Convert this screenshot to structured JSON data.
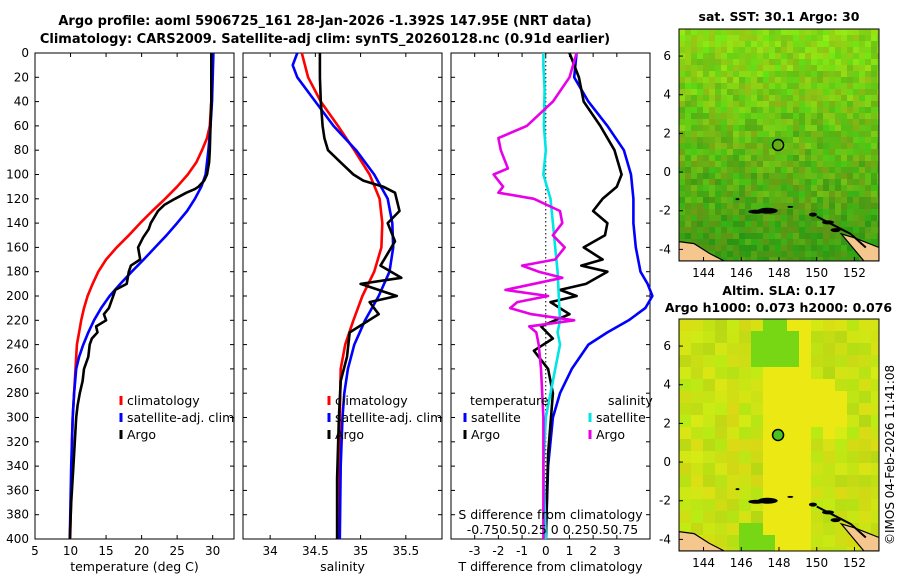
{
  "title": {
    "line1": "Argo profile: aoml 5906725_161 28-Jan-2026 -1.392S 147.95E (NRT data)",
    "line2": "Climatology: CARS2009. Satellite-adj clim: synTS_20260128.nc (0.91d earlier)"
  },
  "colors": {
    "climatology": "#ff0000",
    "satellite": "#0000ff",
    "argo": "#000000",
    "cyan": "#00e5e5",
    "magenta": "#e800e8",
    "land": "#f5c78e"
  },
  "chart_data": [
    {
      "type": "line",
      "name": "temperature",
      "xlabel": "temperature (deg C)",
      "ylim": [
        0,
        400
      ],
      "xlim": [
        5,
        33
      ],
      "xticks": [
        5,
        10,
        15,
        20,
        25,
        30
      ],
      "yticks": [
        0,
        20,
        40,
        60,
        80,
        100,
        120,
        140,
        160,
        180,
        200,
        220,
        240,
        260,
        280,
        300,
        320,
        340,
        360,
        380,
        400
      ],
      "legend": [
        "climatology",
        "satellite-adj. clim",
        "Argo"
      ],
      "series": [
        {
          "name": "climatology",
          "color": "#ff0000",
          "x": [
            30,
            29.9,
            29.8,
            29.6,
            29.2,
            28.5,
            27.7,
            26.5,
            25.0,
            23.3,
            21.5,
            19.8,
            18.2,
            16.5,
            15.0,
            13.9,
            13.1,
            12.4,
            11.9,
            11.5,
            11.2,
            10.9,
            10.7,
            10.5,
            10.3,
            10.2,
            10.1,
            9.95
          ],
          "y": [
            0,
            20,
            40,
            60,
            70,
            80,
            90,
            100,
            110,
            120,
            130,
            140,
            150,
            160,
            170,
            180,
            190,
            200,
            210,
            220,
            230,
            240,
            260,
            280,
            300,
            320,
            360,
            400
          ]
        },
        {
          "name": "satellite-adj. clim",
          "color": "#0000ff",
          "x": [
            30.1,
            30.0,
            29.9,
            29.7,
            29.4,
            29.0,
            28.4,
            27.5,
            26.4,
            25.0,
            23.5,
            21.9,
            20.3,
            18.6,
            17.0,
            15.5,
            14.3,
            13.3,
            12.5,
            11.8,
            11.2,
            10.8,
            10.5,
            10.3,
            10.1,
            9.9
          ],
          "y": [
            0,
            20,
            40,
            60,
            80,
            100,
            110,
            120,
            130,
            140,
            150,
            160,
            170,
            180,
            190,
            200,
            210,
            220,
            230,
            240,
            250,
            260,
            280,
            300,
            340,
            400
          ]
        },
        {
          "name": "Argo",
          "color": "#000000",
          "x": [
            29.8,
            29.8,
            29.8,
            29.7,
            29.6,
            29.5,
            29.2,
            28.8,
            28.0,
            27.5,
            26.3,
            24.7,
            23.2,
            22.3,
            21.3,
            21.0,
            20.2,
            19.5,
            19.8,
            18.5,
            18.2,
            17.9,
            16.3,
            16.0,
            15.4,
            14.7,
            15.0,
            13.6,
            13.8,
            13.0,
            12.7,
            12.5,
            11.9,
            11.7,
            11.3,
            11.0,
            10.8,
            10.6,
            10.4,
            10.1,
            9.9
          ],
          "y": [
            0,
            20,
            40,
            60,
            80,
            90,
            100,
            105,
            110,
            112,
            115,
            120,
            125,
            130,
            140,
            145,
            152,
            160,
            170,
            175,
            180,
            190,
            195,
            200,
            210,
            215,
            220,
            225,
            230,
            235,
            240,
            250,
            260,
            270,
            280,
            290,
            300,
            320,
            340,
            370,
            400
          ]
        }
      ]
    },
    {
      "type": "line",
      "name": "salinity",
      "xlabel": "salinity",
      "ylim": [
        0,
        400
      ],
      "xlim": [
        33.7,
        35.9
      ],
      "xticks": [
        34,
        34.5,
        35,
        35.5
      ],
      "legend": [
        "climatology",
        "satellite-adj. clim",
        "Argo"
      ],
      "series": [
        {
          "name": "climatology",
          "color": "#ff0000",
          "x": [
            34.35,
            34.42,
            34.56,
            34.75,
            34.93,
            35.1,
            35.21,
            35.24,
            35.23,
            35.15,
            35.02,
            34.92,
            34.83,
            34.78,
            34.77,
            34.76
          ],
          "y": [
            0,
            20,
            40,
            60,
            80,
            100,
            120,
            140,
            160,
            180,
            200,
            220,
            240,
            260,
            300,
            400
          ]
        },
        {
          "name": "satellite-adj. clim",
          "color": "#0000ff",
          "x": [
            34.3,
            34.25,
            34.3,
            34.5,
            34.7,
            34.95,
            35.15,
            35.3,
            35.35,
            35.36,
            35.32,
            35.2,
            35.05,
            34.93,
            34.86,
            34.82,
            34.8,
            34.78,
            34.77
          ],
          "y": [
            0,
            10,
            20,
            40,
            60,
            80,
            100,
            120,
            140,
            160,
            180,
            200,
            220,
            240,
            260,
            280,
            300,
            340,
            400
          ]
        },
        {
          "name": "Argo",
          "color": "#000000",
          "x": [
            34.55,
            34.55,
            34.56,
            34.58,
            34.6,
            34.64,
            34.78,
            34.92,
            35.03,
            35.25,
            35.38,
            35.43,
            35.3,
            35.38,
            35.22,
            35.45,
            35.0,
            35.4,
            35.1,
            35.2,
            34.88,
            34.85,
            34.78,
            34.76,
            34.74,
            34.74
          ],
          "y": [
            0,
            20,
            40,
            60,
            70,
            80,
            90,
            100,
            105,
            110,
            115,
            130,
            140,
            155,
            175,
            185,
            190,
            200,
            205,
            215,
            230,
            250,
            270,
            300,
            350,
            400
          ]
        }
      ]
    },
    {
      "type": "line",
      "name": "difference",
      "xlabel": "T difference from climatology",
      "xlabel_top": "S difference from climatology",
      "ylim": [
        0,
        400
      ],
      "xlim": [
        -4,
        4.4
      ],
      "xticks": [
        -3,
        -2,
        -1,
        0,
        1,
        2,
        3
      ],
      "xticks_top": [
        -0.75,
        -0.5,
        -0.25,
        0,
        0.25,
        0.5,
        0.75
      ],
      "xtick_labels_top": "-0.750.50.25 0  0.250.50.75",
      "legend_temperature": [
        "temperature",
        "satellite",
        "Argo"
      ],
      "legend_salinity": [
        "salinity",
        "satellite",
        "Argo"
      ],
      "series": [
        {
          "name": "temperature satellite",
          "color": "#0000ff",
          "x": [
            1.3,
            1.2,
            1.8,
            2.6,
            3.3,
            3.6,
            3.7,
            3.7,
            3.8,
            4.0,
            4.3,
            4.5,
            4.2,
            3.5,
            2.6,
            1.8,
            1.1,
            0.6,
            0.3,
            0.1,
            0.0
          ],
          "y": [
            0,
            20,
            40,
            60,
            80,
            100,
            120,
            140,
            160,
            180,
            190,
            200,
            210,
            220,
            230,
            240,
            260,
            280,
            300,
            340,
            400
          ]
        },
        {
          "name": "temperature Argo",
          "color": "#000000",
          "x": [
            1.0,
            1.4,
            1.6,
            2.3,
            2.9,
            3.2,
            3.0,
            2.4,
            2.0,
            2.6,
            2.5,
            1.6,
            2.4,
            1.5,
            2.6,
            1.7,
            0.6,
            1.3,
            0.2,
            1.0,
            -0.2,
            0.3,
            -0.5,
            0.1,
            0.3,
            0.1,
            0.0
          ],
          "y": [
            0,
            20,
            40,
            60,
            80,
            100,
            110,
            120,
            130,
            140,
            150,
            160,
            170,
            175,
            180,
            190,
            195,
            200,
            205,
            215,
            225,
            235,
            245,
            260,
            280,
            330,
            400
          ]
        },
        {
          "name": "salinity satellite",
          "color": "#00e5e5",
          "x": [
            -0.1,
            -0.1,
            -0.05,
            -0.08,
            0.0,
            -0.1,
            0.2,
            0.3,
            0.4,
            0.5,
            0.55,
            0.6,
            0.5,
            0.6,
            0.5,
            0.2,
            0.0,
            -0.1,
            -0.05,
            0.0
          ],
          "y": [
            0,
            10,
            30,
            60,
            80,
            100,
            120,
            140,
            160,
            180,
            200,
            220,
            230,
            240,
            250,
            280,
            300,
            340,
            370,
            400
          ]
        },
        {
          "name": "salinity Argo",
          "color": "#e800e8",
          "x": [
            1.3,
            1.0,
            0.3,
            -0.8,
            -2.0,
            -1.9,
            -1.6,
            -2.2,
            -1.8,
            -2.0,
            -0.5,
            0.6,
            0.7,
            0.3,
            0.8,
            0.4,
            -1.0,
            -0.3,
            0.7,
            -1.7,
            0.1,
            -1.2,
            -1.5,
            -0.6,
            1.2,
            -0.7,
            -0.4,
            -0.3,
            -0.2,
            -0.1,
            -0.1,
            -0.1
          ],
          "y": [
            0,
            20,
            40,
            60,
            70,
            80,
            95,
            100,
            110,
            115,
            120,
            130,
            140,
            150,
            160,
            170,
            175,
            180,
            185,
            195,
            200,
            205,
            210,
            215,
            220,
            225,
            230,
            240,
            260,
            300,
            350,
            400
          ]
        }
      ]
    },
    {
      "type": "heatmap",
      "name": "sat-sst-map",
      "title": "sat. SST: 30.1 Argo: 30",
      "xlim": [
        142.7,
        153.3
      ],
      "ylim": [
        -4.6,
        7.4
      ],
      "xticks": [
        144,
        146,
        148,
        150,
        152
      ],
      "yticks": [
        -4,
        -2,
        0,
        2,
        4,
        6
      ],
      "marker": {
        "lon": 147.95,
        "lat": 1.4,
        "style": "open-circle"
      }
    },
    {
      "type": "heatmap",
      "name": "altim-sla-map",
      "title_line1": "Altim. SLA: 0.17",
      "title_line2": "Argo h1000: 0.073 h2000: 0.076",
      "xlim": [
        142.7,
        153.3
      ],
      "ylim": [
        -4.6,
        7.4
      ],
      "xticks": [
        144,
        146,
        148,
        150,
        152
      ],
      "yticks": [
        -4,
        -2,
        0,
        2,
        4,
        6
      ],
      "marker": {
        "lon": 147.95,
        "lat": 1.4,
        "style": "filled-circle"
      }
    }
  ],
  "credit": "©IMOS 04-Feb-2026 11:41:08"
}
